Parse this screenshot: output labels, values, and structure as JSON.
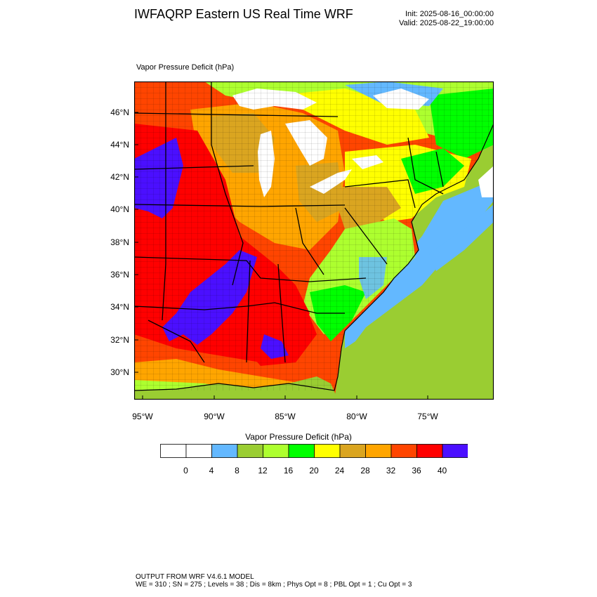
{
  "header": {
    "title": "IWFAQRP Eastern US Real Time WRF",
    "init": "Init: 2025-08-16_00:00:00",
    "valid": "Valid: 2025-08-22_19:00:00"
  },
  "map": {
    "field_label": "Vapor Pressure Deficit   (hPa)",
    "lat_labels": [
      "46°N",
      "44°N",
      "42°N",
      "40°N",
      "38°N",
      "36°N",
      "34°N",
      "32°N",
      "30°N"
    ],
    "lon_labels": [
      "95°W",
      "90°W",
      "85°W",
      "80°W",
      "75°W"
    ],
    "colors": {
      "lake": "#ffffff",
      "ocean": "#9acd32",
      "coastal_water": "#63b8ff",
      "land_wet": "#ffff00",
      "land_green": "#00ff00",
      "land_orange": "#ffa500",
      "land_red": "#ff4500",
      "land_dark_red": "#ff0000",
      "land_max": "#4b0fff",
      "land_tan": "#daa520"
    }
  },
  "colorbar": {
    "title": "Vapor Pressure Deficit   (hPa)",
    "colors": [
      "#ffffff",
      "#ffffff",
      "#63b8ff",
      "#9acd32",
      "#adff2f",
      "#00ff00",
      "#ffff00",
      "#daa520",
      "#ffa500",
      "#ff4500",
      "#ff0000",
      "#4b0fff"
    ],
    "labels": [
      "0",
      "4",
      "8",
      "12",
      "16",
      "20",
      "24",
      "28",
      "32",
      "36",
      "40"
    ]
  },
  "footer": {
    "line1": "OUTPUT FROM WRF V4.6.1 MODEL",
    "line2": "WE = 310 ; SN = 275 ; Levels = 38 ; Dis = 8km ; Phys Opt = 8 ; PBL Opt = 1 ; Cu Opt = 3"
  }
}
